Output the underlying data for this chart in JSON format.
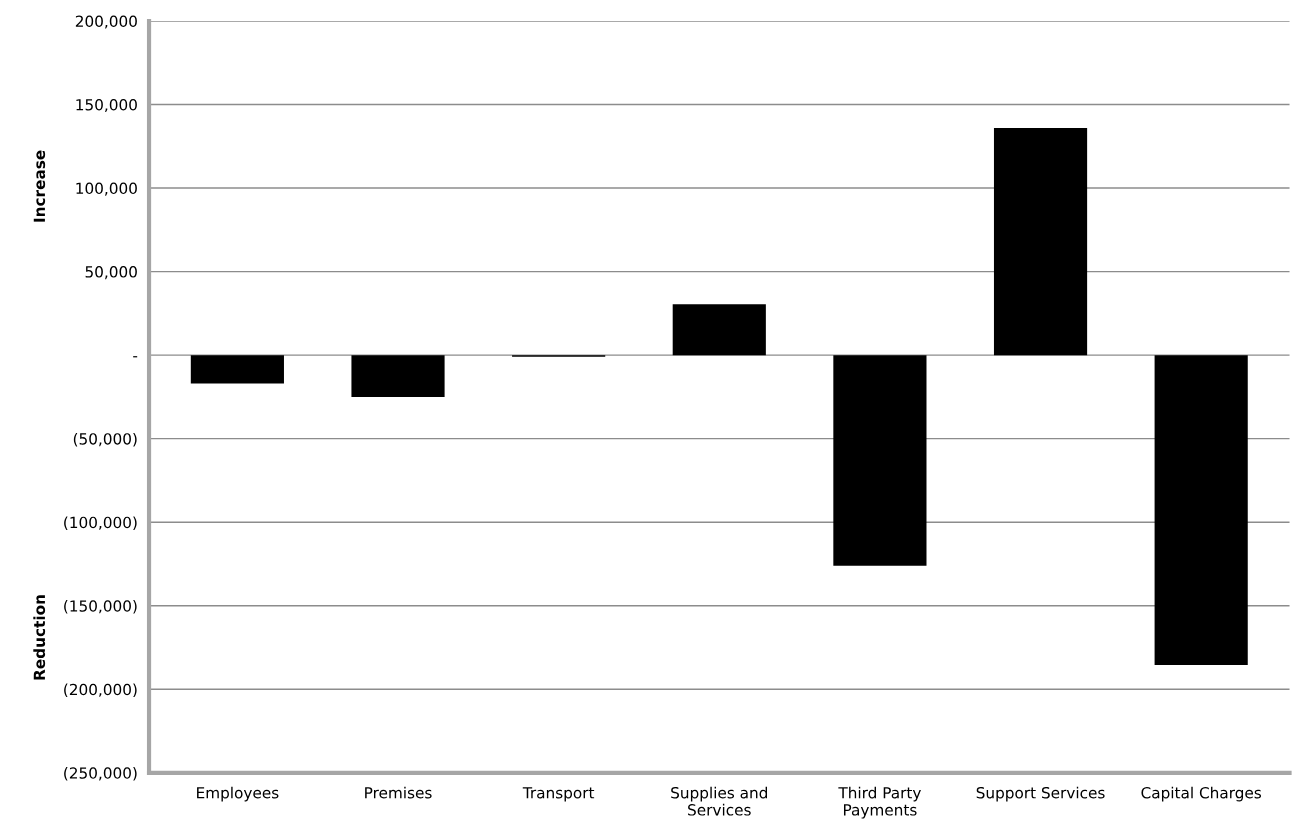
{
  "chart_data": {
    "type": "bar",
    "ylabel": "Increase",
    "annotations": [
      "Reduction"
    ],
    "categories": [
      "Employees",
      "Premises",
      "Transport",
      "Supplies and\nServices",
      "Third Party\nPayments",
      "Support Services",
      "Capital Charges"
    ],
    "values": [
      -17000,
      -25000,
      -1000,
      30500,
      -126000,
      136000,
      -185500
    ],
    "color": "#000000",
    "ylim": [
      -250000,
      200000
    ],
    "yticks": [
      {
        "value": -250000,
        "label": "(250,000)"
      },
      {
        "value": -200000,
        "label": "(200,000)"
      },
      {
        "value": -150000,
        "label": "(150,000)"
      },
      {
        "value": -100000,
        "label": "(100,000)"
      },
      {
        "value": -50000,
        "label": "(50,000)"
      },
      {
        "value": 0,
        "label": "-"
      },
      {
        "value": 50000,
        "label": "50,000"
      },
      {
        "value": 100000,
        "label": "100,000"
      },
      {
        "value": 150000,
        "label": "150,000"
      },
      {
        "value": 200000,
        "label": "200,000"
      }
    ],
    "grid": "y"
  }
}
